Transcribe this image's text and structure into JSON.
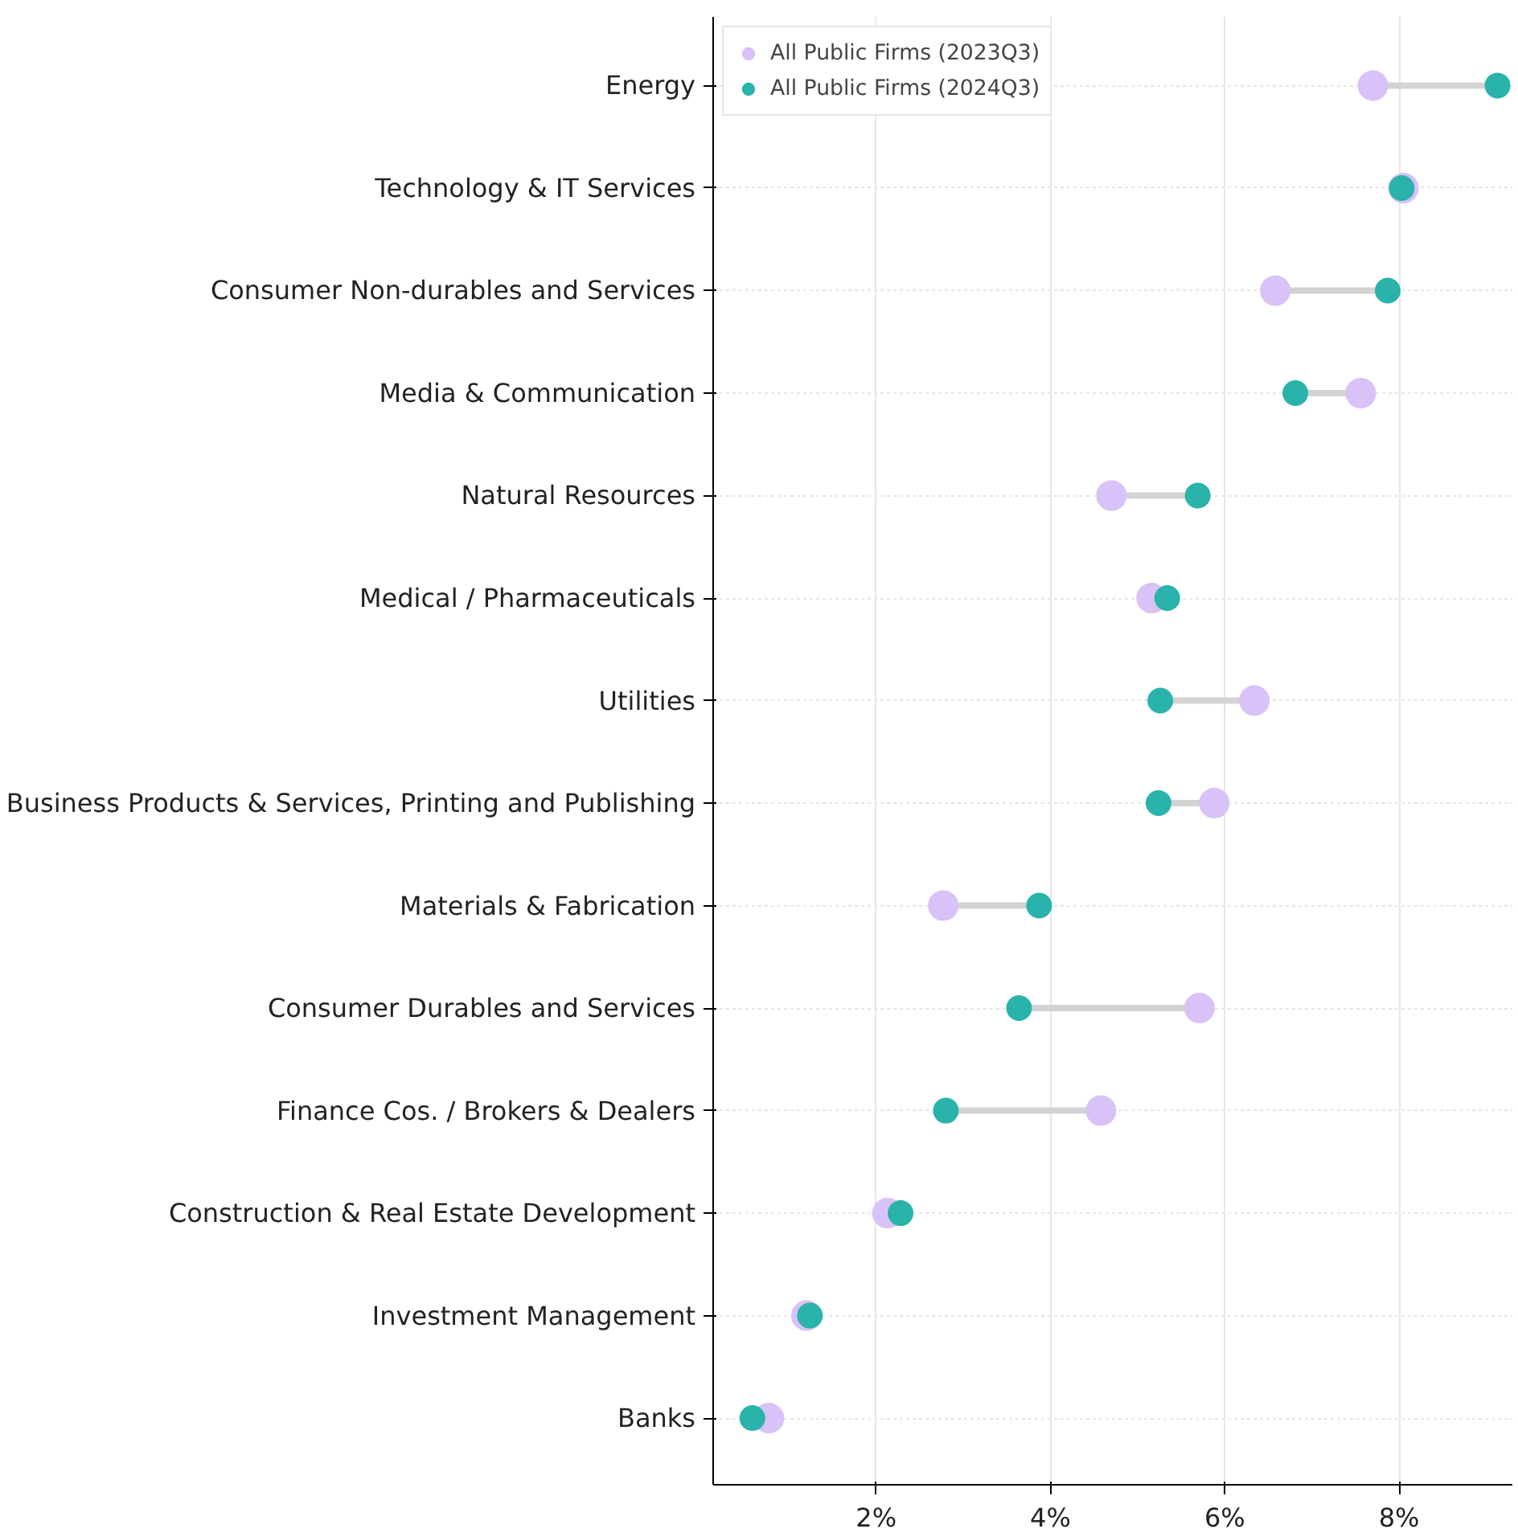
{
  "chart_data": {
    "type": "scatter",
    "orientation": "horizontal",
    "categories": [
      "Energy",
      "Technology & IT Services",
      "Consumer Non-durables and Services",
      "Media & Communication",
      "Natural Resources",
      "Medical / Pharmaceuticals",
      "Utilities",
      "Business Products & Services, Printing and Publishing",
      "Materials & Fabrication",
      "Consumer Durables and Services",
      "Finance Cos. / Brokers & Dealers",
      "Construction & Real Estate Development",
      "Investment Management",
      "Banks"
    ],
    "series": [
      {
        "name": "All Public Firms (2023Q3)",
        "color": "#d9c2f7",
        "values": [
          7.7,
          8.05,
          6.58,
          7.56,
          4.7,
          5.16,
          6.34,
          5.88,
          2.77,
          5.71,
          4.58,
          2.13,
          1.2,
          0.77
        ]
      },
      {
        "name": "All Public Firms (2024Q3)",
        "color": "#2ab3aa",
        "values": [
          9.13,
          8.03,
          7.87,
          6.81,
          5.69,
          5.34,
          5.26,
          5.24,
          3.87,
          3.64,
          2.8,
          2.28,
          1.24,
          0.58
        ]
      }
    ],
    "xlim": [
      0.13,
      9.3
    ],
    "xticks": [
      {
        "value": 2,
        "label": "2%"
      },
      {
        "value": 4,
        "label": "4%"
      },
      {
        "value": 6,
        "label": "6%"
      },
      {
        "value": 8,
        "label": "8%"
      }
    ],
    "grid": true,
    "legend": "top left",
    "marker": "circle"
  }
}
